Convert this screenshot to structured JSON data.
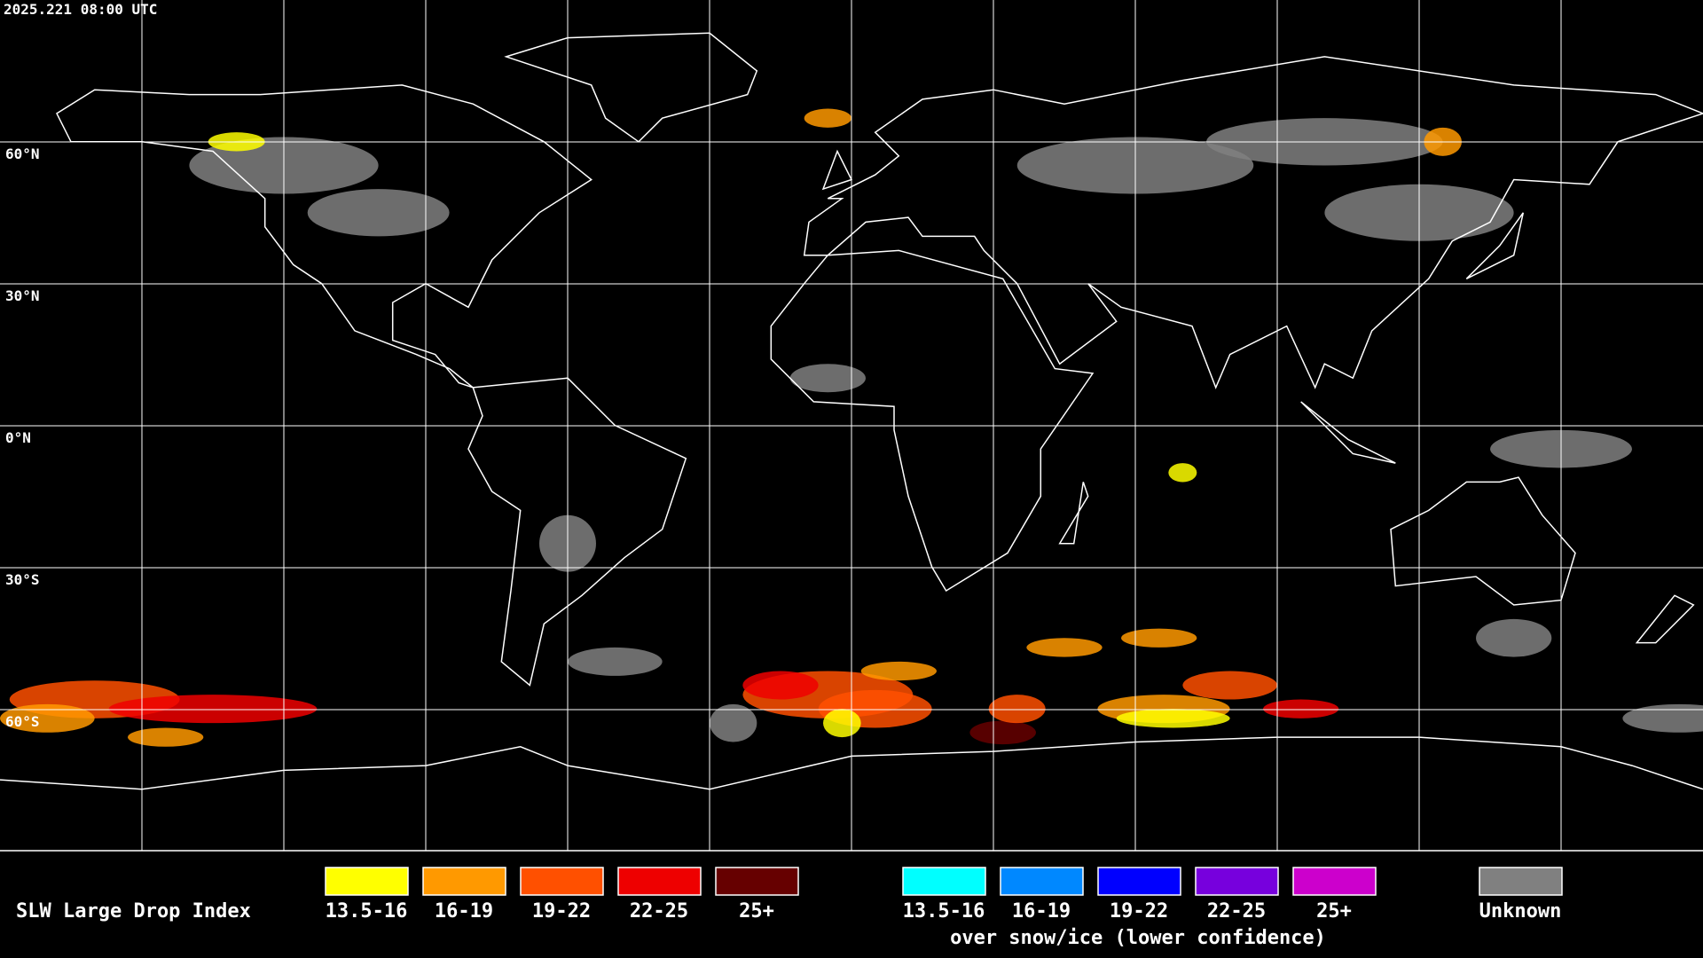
{
  "header": {
    "timestamp": "2025.221 08:00 UTC"
  },
  "map": {
    "latitude_labels": [
      "60°N",
      "30°N",
      "0°N",
      "30°S",
      "60°S"
    ]
  },
  "legend": {
    "title": "SLW Large Drop Index",
    "items": [
      {
        "label": "13.5-16",
        "color": "#ffff00"
      },
      {
        "label": "16-19",
        "color": "#ff9900"
      },
      {
        "label": "19-22",
        "color": "#ff5000"
      },
      {
        "label": "22-25",
        "color": "#ee0000"
      },
      {
        "label": "25+",
        "color": "#660000"
      }
    ],
    "snow_ice_items": [
      {
        "label": "13.5-16",
        "color": "#00ffff"
      },
      {
        "label": "16-19",
        "color": "#0088ff"
      },
      {
        "label": "19-22",
        "color": "#0000ff"
      },
      {
        "label": "22-25",
        "color": "#7700dd"
      },
      {
        "label": "25+",
        "color": "#cc00cc"
      }
    ],
    "snow_ice_note": "over snow/ice (lower confidence)",
    "unknown": {
      "label": "Unknown",
      "color": "#808080"
    }
  }
}
